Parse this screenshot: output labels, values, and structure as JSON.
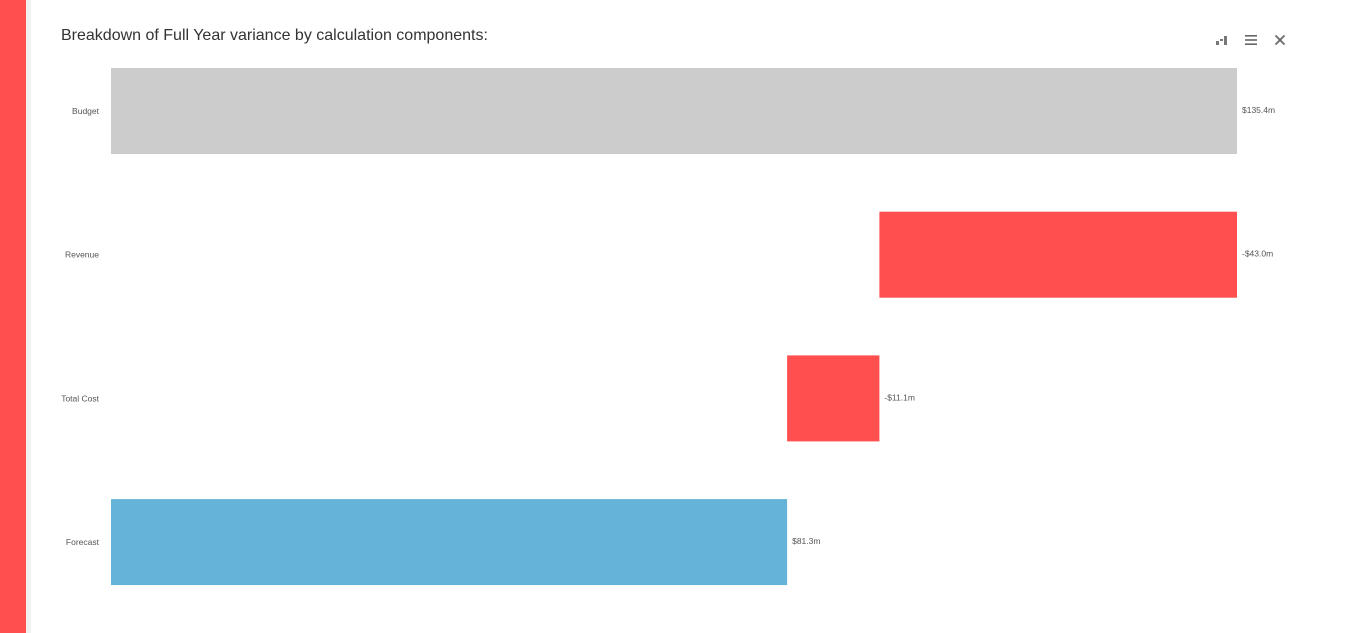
{
  "title": "Breakdown of Full Year variance by calculation components:",
  "colors": {
    "accent": "#ff4f4f",
    "budget": "#cccccc",
    "negative": "#ff4f4f",
    "forecast": "#66b3d9"
  },
  "toolbar": {
    "icons": [
      "bar-chart-icon",
      "menu-icon",
      "close-icon"
    ]
  },
  "chart_data": {
    "type": "waterfall",
    "orientation": "horizontal",
    "categories": [
      "Budget",
      "Revenue",
      "Total Cost",
      "Forecast"
    ],
    "values": [
      135.4,
      -43.0,
      -11.1,
      81.3
    ],
    "value_labels": [
      "$135.4m",
      "-$43.0m",
      "-$11.1m",
      "$81.3m"
    ],
    "bar_kinds": [
      "total",
      "delta",
      "delta",
      "total"
    ],
    "xlim": [
      0,
      135.4
    ],
    "grid": false,
    "legend": "none"
  }
}
